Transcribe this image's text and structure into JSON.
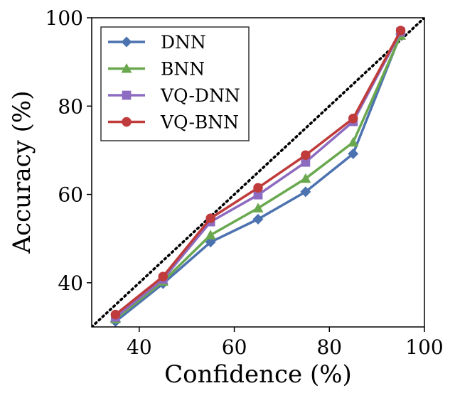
{
  "chart_data": {
    "type": "line",
    "xlabel": "Confidence (%)",
    "ylabel": "Accuracy (%)",
    "xlim": [
      30,
      100
    ],
    "ylim": [
      30,
      100
    ],
    "xticks": [
      40,
      60,
      80,
      100
    ],
    "yticks": [
      40,
      60,
      80,
      100
    ],
    "grid": false,
    "legend_position": "top-left",
    "reference_line": {
      "style": "dotted",
      "color": "#000000",
      "from": [
        30,
        30
      ],
      "to": [
        100,
        100
      ]
    },
    "x": [
      35,
      45,
      55,
      65,
      75,
      85,
      95
    ],
    "series": [
      {
        "name": "DNN",
        "marker": "diamond",
        "color": "#4C72B0",
        "values": [
          31.2,
          39.8,
          49.2,
          54.4,
          60.6,
          69.2,
          96.3
        ]
      },
      {
        "name": "BNN",
        "marker": "triangle",
        "color": "#6AA84F",
        "values": [
          31.8,
          40.3,
          50.8,
          56.9,
          63.6,
          71.8,
          96.0
        ]
      },
      {
        "name": "VQ-DNN",
        "marker": "square",
        "color": "#8C6BC0",
        "values": [
          32.2,
          40.8,
          53.8,
          59.9,
          67.3,
          76.5,
          96.8
        ]
      },
      {
        "name": "VQ-BNN",
        "marker": "circle",
        "color": "#C03B3B",
        "values": [
          32.8,
          41.4,
          54.6,
          61.5,
          68.9,
          77.2,
          97.1
        ]
      }
    ]
  }
}
